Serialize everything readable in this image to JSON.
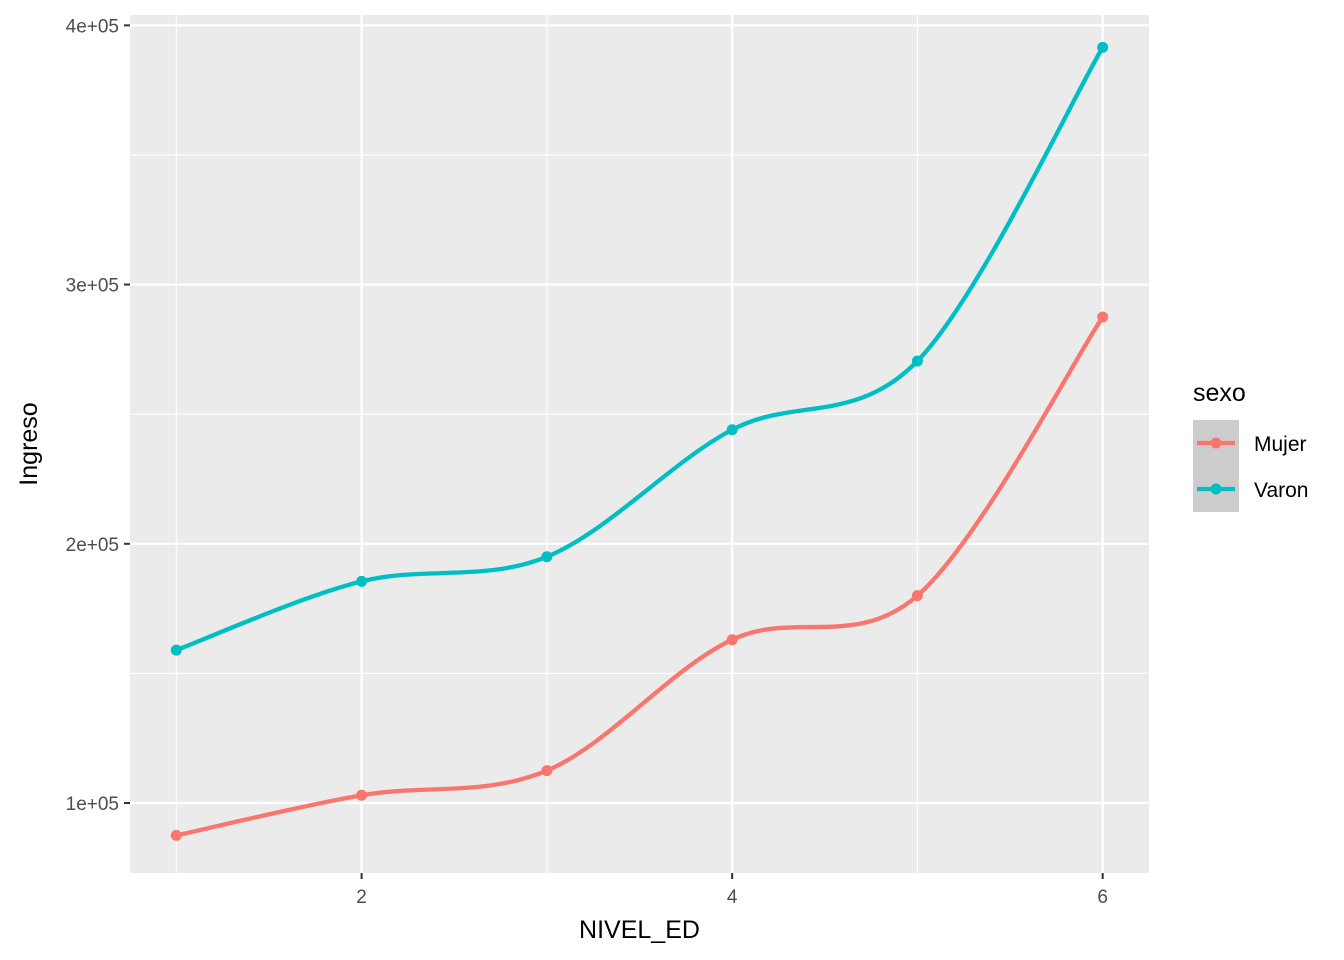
{
  "chart_data": {
    "type": "line",
    "title": "",
    "xlabel": "NIVEL_ED",
    "ylabel": "Ingreso",
    "x": [
      1,
      2,
      3,
      4,
      5,
      6
    ],
    "xlim": [
      0.75,
      6.25
    ],
    "ylim": [
      73000,
      404000
    ],
    "x_ticks": [
      2,
      4,
      6
    ],
    "x_tick_labels": [
      "2",
      "4",
      "6"
    ],
    "y_ticks": [
      100000,
      200000,
      300000,
      400000
    ],
    "y_tick_labels": [
      "1e+05",
      "2e+05",
      "3e+05",
      "4e+05"
    ],
    "smooth": true,
    "markers": true,
    "grid": true,
    "panel_background": "#ebebeb",
    "legend": {
      "title": "sexo",
      "position": "right",
      "key_background": "#cccccc"
    },
    "series": [
      {
        "name": "Mujer",
        "color": "#f8766d",
        "values": [
          87500,
          103000,
          112500,
          163000,
          180000,
          287500
        ]
      },
      {
        "name": "Varon",
        "color": "#00bfc4",
        "values": [
          159000,
          185500,
          195000,
          244000,
          270500,
          391500
        ]
      }
    ]
  }
}
